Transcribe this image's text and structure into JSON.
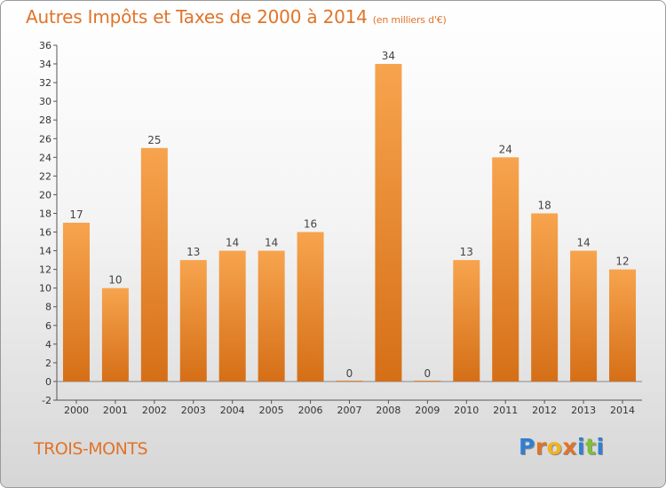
{
  "header": {
    "title": "Autres Impôts et Taxes de 2000 à 2014",
    "unit": "(en milliers d'€)"
  },
  "footer": {
    "place": "TROIS-MONTS",
    "logo_letters": [
      "P",
      "r",
      "o",
      "x",
      "i",
      "t",
      "i"
    ],
    "logo_colors": [
      "#2f7fd2",
      "#e0742a",
      "#f0b321",
      "#e0742a",
      "#2f7fd2",
      "#7fbf3a",
      "#2f7fd2"
    ]
  },
  "chart_data": {
    "type": "bar",
    "title": "Autres Impôts et Taxes de 2000 à 2014",
    "subtitle": "(en milliers d'€)",
    "categories": [
      "2000",
      "2001",
      "2002",
      "2003",
      "2004",
      "2005",
      "2006",
      "2007",
      "2008",
      "2009",
      "2010",
      "2011",
      "2012",
      "2013",
      "2014"
    ],
    "values": [
      17,
      10,
      25,
      13,
      14,
      14,
      16,
      0,
      34,
      0,
      13,
      24,
      18,
      14,
      12
    ],
    "ylim": [
      -2,
      36
    ],
    "yticks": [
      -2,
      0,
      2,
      4,
      6,
      8,
      10,
      12,
      14,
      16,
      18,
      20,
      22,
      24,
      26,
      28,
      30,
      32,
      34,
      36
    ],
    "grid": false,
    "bar_color_top": "#f7a44e",
    "bar_color_bottom": "#d56f17"
  }
}
